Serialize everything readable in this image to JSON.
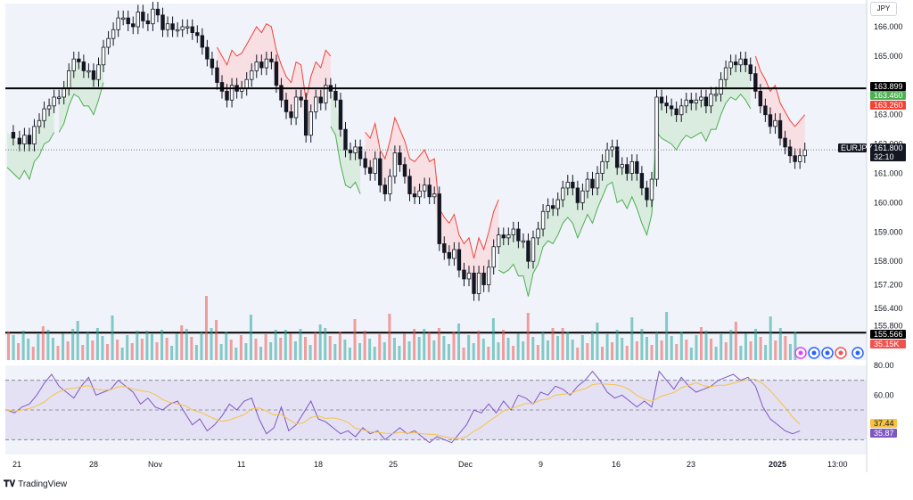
{
  "app": {
    "logo_text": "TradingView",
    "currency": "JPY"
  },
  "colors": {
    "bg": "#f0f3fa",
    "panel_bg": "#ffffff",
    "up": "#26a69a",
    "down": "#ef5350",
    "st_up_line": "#4caf50",
    "st_down_line": "#f44336",
    "st_up_fill": "#c8e6c9",
    "st_down_fill": "#ffcdd2",
    "rsi_line": "#7e57c2",
    "rsi_ma": "#f6c343",
    "rsi_band": "#e1dcf2",
    "grid": "#e0e3eb",
    "price_line": "#787b86",
    "black": "#000000"
  },
  "price_axis": {
    "ticks": [
      "166.000",
      "165.000",
      "164.000",
      "163.000",
      "162.000",
      "161.000",
      "160.000",
      "159.000",
      "158.000",
      "157.200",
      "156.400",
      "155.800"
    ]
  },
  "price_tags": [
    {
      "label": "163.899",
      "value": 163.899,
      "bg": "#000000",
      "fg": "#ffffff"
    },
    {
      "label": "163.460",
      "value": 163.46,
      "bg": "#4caf50",
      "fg": "#ffffff"
    },
    {
      "label": "163.260",
      "value": 163.26,
      "bg": "#f44336",
      "fg": "#ffffff"
    },
    {
      "label": "161.800",
      "value": 161.8,
      "bg": "#131722",
      "fg": "#ffffff",
      "sub": "32:10"
    },
    {
      "label": "155.566",
      "value": 155.566,
      "bg": "#000000",
      "fg": "#ffffff"
    },
    {
      "label": "35.15K",
      "value": 35150,
      "bg": "#ef5350",
      "fg": "#ffffff"
    }
  ],
  "symbol_tag": "EURJPY",
  "rsi_axis": {
    "ticks": [
      "80.00",
      "60.00"
    ]
  },
  "rsi_tags": [
    {
      "label": "37.44",
      "value": 37.44,
      "bg": "#f6c343",
      "fg": "#131722"
    },
    {
      "label": "35.87",
      "value": 35.87,
      "bg": "#7e57c2",
      "fg": "#ffffff"
    }
  ],
  "time_axis": {
    "labels": [
      "21",
      "28",
      "Nov",
      "11",
      "18",
      "25",
      "Dec",
      "9",
      "16",
      "23",
      "2025",
      "13:00"
    ]
  },
  "chart_data": [
    {
      "type": "candlestick",
      "symbol": "EURJPY",
      "x_labels": [
        "21",
        "28",
        "Nov",
        "11",
        "18",
        "25",
        "Dec",
        "9",
        "16",
        "23",
        "2025",
        "13:00"
      ],
      "last_price": 161.8,
      "countdown": "32:10",
      "horizontal_lines": [
        163.899,
        155.566
      ],
      "supertrend": {
        "up_value": 163.46,
        "down_value": 163.26
      },
      "ohlc_trace": [
        [
          0,
          162.4
        ],
        [
          5,
          162.2
        ],
        [
          10,
          162.0
        ],
        [
          14,
          162.3
        ],
        [
          18,
          162.0
        ],
        [
          22,
          162.6
        ],
        [
          26,
          162.8
        ],
        [
          30,
          163.2
        ],
        [
          34,
          163.3
        ],
        [
          38,
          163.6
        ],
        [
          42,
          163.6
        ],
        [
          46,
          163.9
        ],
        [
          50,
          164.5
        ],
        [
          54,
          164.9
        ],
        [
          58,
          164.8
        ],
        [
          62,
          164.5
        ],
        [
          66,
          164.5
        ],
        [
          70,
          164.2
        ],
        [
          74,
          164.7
        ],
        [
          78,
          165.3
        ],
        [
          82,
          165.6
        ],
        [
          86,
          165.9
        ],
        [
          90,
          166.3
        ],
        [
          94,
          166.3
        ],
        [
          98,
          166.1
        ],
        [
          102,
          166.0
        ],
        [
          106,
          166.5
        ],
        [
          110,
          166.2
        ],
        [
          114,
          166.1
        ],
        [
          118,
          166.6
        ],
        [
          122,
          166.4
        ],
        [
          126,
          165.9
        ],
        [
          130,
          166.1
        ],
        [
          134,
          165.9
        ],
        [
          138,
          165.9
        ],
        [
          142,
          166.0
        ],
        [
          146,
          166.0
        ],
        [
          150,
          165.8
        ],
        [
          154,
          165.7
        ],
        [
          158,
          165.3
        ],
        [
          162,
          164.9
        ],
        [
          166,
          164.6
        ],
        [
          170,
          164.1
        ],
        [
          174,
          163.8
        ],
        [
          178,
          163.5
        ],
        [
          182,
          164.0
        ],
        [
          186,
          163.8
        ],
        [
          190,
          163.9
        ],
        [
          194,
          164.2
        ],
        [
          198,
          164.5
        ],
        [
          202,
          164.8
        ],
        [
          206,
          164.6
        ],
        [
          210,
          164.9
        ],
        [
          214,
          164.8
        ],
        [
          218,
          164.0
        ],
        [
          222,
          163.5
        ],
        [
          226,
          163.1
        ],
        [
          230,
          162.9
        ],
        [
          234,
          163.6
        ],
        [
          238,
          163.5
        ],
        [
          242,
          162.3
        ],
        [
          246,
          163.1
        ],
        [
          250,
          163.6
        ],
        [
          254,
          163.4
        ],
        [
          258,
          164.0
        ],
        [
          262,
          163.8
        ],
        [
          266,
          163.5
        ],
        [
          270,
          162.5
        ],
        [
          274,
          161.8
        ],
        [
          278,
          161.7
        ],
        [
          282,
          161.9
        ],
        [
          286,
          161.5
        ],
        [
          290,
          161.2
        ],
        [
          294,
          161.0
        ],
        [
          298,
          161.5
        ],
        [
          302,
          160.6
        ],
        [
          306,
          160.3
        ],
        [
          310,
          160.9
        ],
        [
          314,
          161.7
        ],
        [
          318,
          161.3
        ],
        [
          322,
          160.9
        ],
        [
          326,
          160.3
        ],
        [
          330,
          160.2
        ],
        [
          334,
          160.4
        ],
        [
          338,
          160.6
        ],
        [
          342,
          160.2
        ],
        [
          346,
          160.3
        ],
        [
          350,
          158.6
        ],
        [
          354,
          158.3
        ],
        [
          358,
          158.1
        ],
        [
          362,
          158.4
        ],
        [
          366,
          157.7
        ],
        [
          370,
          157.4
        ],
        [
          374,
          157.6
        ],
        [
          378,
          156.9
        ],
        [
          382,
          157.6
        ],
        [
          386,
          157.2
        ],
        [
          390,
          157.8
        ],
        [
          394,
          158.5
        ],
        [
          398,
          158.9
        ],
        [
          402,
          158.8
        ],
        [
          406,
          158.9
        ],
        [
          410,
          159.1
        ],
        [
          414,
          158.7
        ],
        [
          418,
          158.7
        ],
        [
          422,
          158.0
        ],
        [
          426,
          158.8
        ],
        [
          430,
          159.1
        ],
        [
          434,
          159.7
        ],
        [
          438,
          159.9
        ],
        [
          442,
          159.8
        ],
        [
          446,
          160.1
        ],
        [
          450,
          160.5
        ],
        [
          454,
          160.7
        ],
        [
          458,
          160.5
        ],
        [
          462,
          160.0
        ],
        [
          466,
          160.4
        ],
        [
          470,
          160.8
        ],
        [
          474,
          160.5
        ],
        [
          478,
          161.0
        ],
        [
          482,
          161.4
        ],
        [
          486,
          161.8
        ],
        [
          490,
          161.9
        ],
        [
          494,
          161.2
        ],
        [
          498,
          161.3
        ],
        [
          502,
          161.0
        ],
        [
          506,
          161.4
        ],
        [
          510,
          161.0
        ],
        [
          514,
          160.5
        ],
        [
          518,
          160.1
        ],
        [
          522,
          160.8
        ],
        [
          526,
          163.6
        ],
        [
          530,
          163.4
        ],
        [
          534,
          163.3
        ],
        [
          538,
          163.2
        ],
        [
          542,
          163.0
        ],
        [
          546,
          163.3
        ],
        [
          550,
          163.5
        ],
        [
          554,
          163.4
        ],
        [
          558,
          163.5
        ],
        [
          562,
          163.6
        ],
        [
          566,
          163.3
        ],
        [
          570,
          163.7
        ],
        [
          574,
          163.7
        ],
        [
          578,
          164.2
        ],
        [
          582,
          164.6
        ],
        [
          586,
          164.8
        ],
        [
          590,
          164.7
        ],
        [
          594,
          164.9
        ],
        [
          598,
          164.7
        ],
        [
          602,
          164.4
        ],
        [
          606,
          163.8
        ],
        [
          610,
          163.3
        ],
        [
          614,
          163.0
        ],
        [
          618,
          162.6
        ],
        [
          622,
          162.8
        ],
        [
          626,
          162.2
        ],
        [
          630,
          161.9
        ],
        [
          634,
          161.6
        ],
        [
          638,
          161.4
        ],
        [
          642,
          161.6
        ],
        [
          646,
          161.8
        ]
      ],
      "volume_last": "35.15K"
    },
    {
      "type": "line",
      "name": "RSI",
      "ylim": [
        20,
        80
      ],
      "ticks": [
        80,
        60
      ],
      "rsi_value": 35.87,
      "ma_value": 37.44,
      "rsi_trace": [
        [
          0,
          50
        ],
        [
          6,
          48
        ],
        [
          12,
          52
        ],
        [
          18,
          54
        ],
        [
          24,
          60
        ],
        [
          30,
          68
        ],
        [
          36,
          74
        ],
        [
          42,
          66
        ],
        [
          48,
          62
        ],
        [
          54,
          58
        ],
        [
          60,
          66
        ],
        [
          66,
          72
        ],
        [
          72,
          60
        ],
        [
          78,
          62
        ],
        [
          84,
          64
        ],
        [
          90,
          70
        ],
        [
          96,
          66
        ],
        [
          102,
          62
        ],
        [
          108,
          54
        ],
        [
          114,
          58
        ],
        [
          120,
          52
        ],
        [
          126,
          50
        ],
        [
          132,
          54
        ],
        [
          138,
          56
        ],
        [
          144,
          48
        ],
        [
          150,
          40
        ],
        [
          156,
          44
        ],
        [
          162,
          36
        ],
        [
          168,
          40
        ],
        [
          174,
          46
        ],
        [
          180,
          54
        ],
        [
          186,
          50
        ],
        [
          192,
          56
        ],
        [
          198,
          58
        ],
        [
          204,
          44
        ],
        [
          210,
          34
        ],
        [
          216,
          38
        ],
        [
          222,
          52
        ],
        [
          228,
          36
        ],
        [
          234,
          40
        ],
        [
          240,
          48
        ],
        [
          246,
          56
        ],
        [
          252,
          44
        ],
        [
          258,
          42
        ],
        [
          264,
          38
        ],
        [
          270,
          34
        ],
        [
          276,
          36
        ],
        [
          282,
          32
        ],
        [
          288,
          38
        ],
        [
          294,
          34
        ],
        [
          300,
          36
        ],
        [
          306,
          30
        ],
        [
          312,
          34
        ],
        [
          318,
          38
        ],
        [
          324,
          34
        ],
        [
          330,
          36
        ],
        [
          336,
          32
        ],
        [
          342,
          28
        ],
        [
          348,
          32
        ],
        [
          354,
          30
        ],
        [
          360,
          28
        ],
        [
          366,
          34
        ],
        [
          372,
          40
        ],
        [
          378,
          50
        ],
        [
          384,
          48
        ],
        [
          390,
          54
        ],
        [
          396,
          48
        ],
        [
          402,
          56
        ],
        [
          408,
          50
        ],
        [
          414,
          60
        ],
        [
          420,
          58
        ],
        [
          426,
          54
        ],
        [
          432,
          62
        ],
        [
          438,
          60
        ],
        [
          444,
          66
        ],
        [
          450,
          64
        ],
        [
          456,
          60
        ],
        [
          462,
          66
        ],
        [
          468,
          70
        ],
        [
          474,
          76
        ],
        [
          480,
          70
        ],
        [
          486,
          62
        ],
        [
          492,
          58
        ],
        [
          498,
          60
        ],
        [
          504,
          56
        ],
        [
          510,
          52
        ],
        [
          516,
          56
        ],
        [
          522,
          52
        ],
        [
          528,
          76
        ],
        [
          534,
          70
        ],
        [
          540,
          64
        ],
        [
          546,
          72
        ],
        [
          552,
          66
        ],
        [
          558,
          62
        ],
        [
          564,
          64
        ],
        [
          570,
          66
        ],
        [
          576,
          70
        ],
        [
          582,
          72
        ],
        [
          588,
          74
        ],
        [
          594,
          70
        ],
        [
          600,
          72
        ],
        [
          606,
          66
        ],
        [
          612,
          52
        ],
        [
          618,
          44
        ],
        [
          624,
          40
        ],
        [
          630,
          36
        ],
        [
          636,
          34
        ],
        [
          642,
          35.87
        ]
      ]
    }
  ]
}
